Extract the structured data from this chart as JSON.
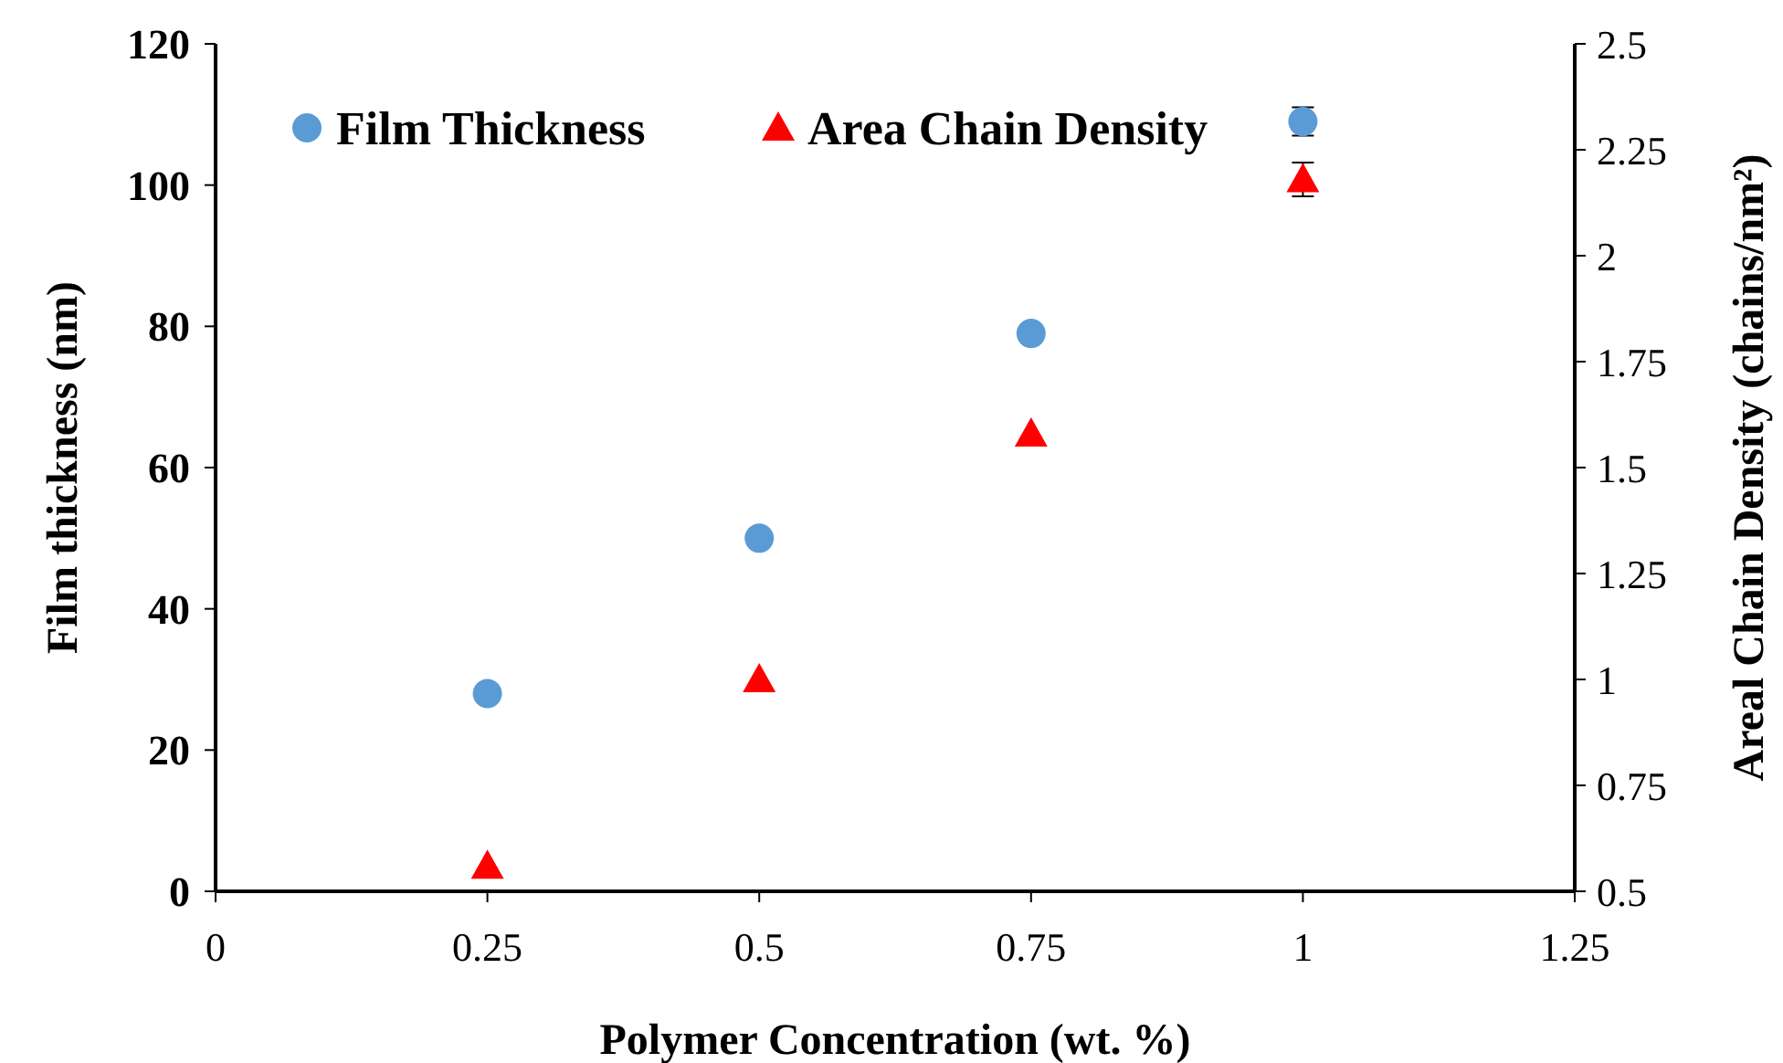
{
  "chart_data": {
    "type": "scatter",
    "xlabel": "Polymer Concentration (wt. %)",
    "ylabel": "Film thickness (nm)",
    "y2label": "Areal Chain Density (chains/nm²)",
    "x": [
      0.25,
      0.5,
      0.75,
      1
    ],
    "xlim": [
      0,
      1.25
    ],
    "xticks": [
      0,
      0.25,
      0.5,
      0.75,
      1,
      1.25
    ],
    "ylim": [
      0,
      120
    ],
    "yticks": [
      0,
      20,
      40,
      60,
      80,
      100,
      120
    ],
    "y2lim": [
      0.5,
      2.5
    ],
    "y2ticks": [
      0.5,
      0.75,
      1,
      1.25,
      1.5,
      1.75,
      2,
      2.25,
      2.5
    ],
    "legend": "top left",
    "grid": false,
    "series": [
      {
        "name": "Film Thickness",
        "color": "#5b9bd5",
        "marker": "circle",
        "values": [
          28,
          50,
          79,
          109
        ],
        "errors": [
          null,
          null,
          null,
          2
        ]
      },
      {
        "name": "Area Chain Density",
        "color": "#ff0000",
        "marker": "triangle",
        "axis": "y2",
        "values": [
          0.56,
          1.0,
          1.58,
          2.18
        ],
        "errors": [
          null,
          null,
          null,
          0.04
        ]
      }
    ]
  }
}
